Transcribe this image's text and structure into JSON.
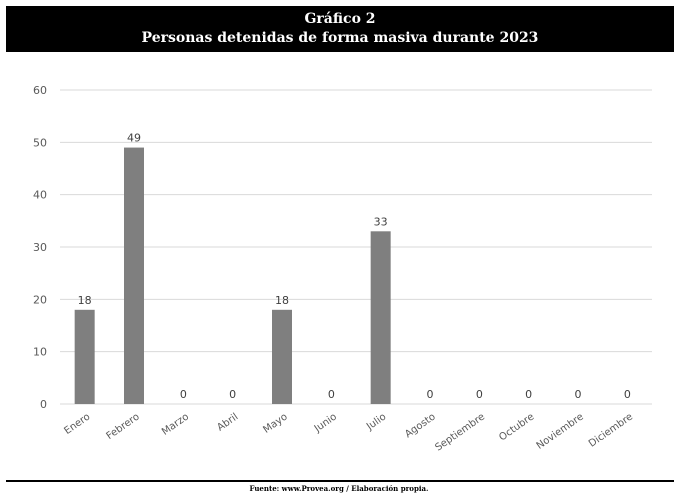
{
  "header": {
    "title_line1": "Gráfico 2",
    "title_line2": "Personas detenidas de forma masiva durante 2023"
  },
  "footer": {
    "source": "Fuente: www.Provea.org / Elaboración propia."
  },
  "colors": {
    "bar": "#7f7f7f",
    "grid": "#d9d9d9",
    "text": "#595959",
    "header_bg": "#000000"
  },
  "chart_data": {
    "type": "bar",
    "title": "Personas detenidas de forma masiva durante 2023",
    "categories": [
      "Enero",
      "Febrero",
      "Marzo",
      "Abril",
      "Mayo",
      "Junio",
      "Julio",
      "Agosto",
      "Septiembre",
      "Octubre",
      "Noviembre",
      "Diciembre"
    ],
    "values": [
      18,
      49,
      0,
      0,
      18,
      0,
      33,
      0,
      0,
      0,
      0,
      0
    ],
    "ylim": [
      0,
      60
    ],
    "yticks": [
      0,
      10,
      20,
      30,
      40,
      50,
      60
    ],
    "grid": true,
    "data_labels": true,
    "xlabel": "",
    "ylabel": ""
  }
}
